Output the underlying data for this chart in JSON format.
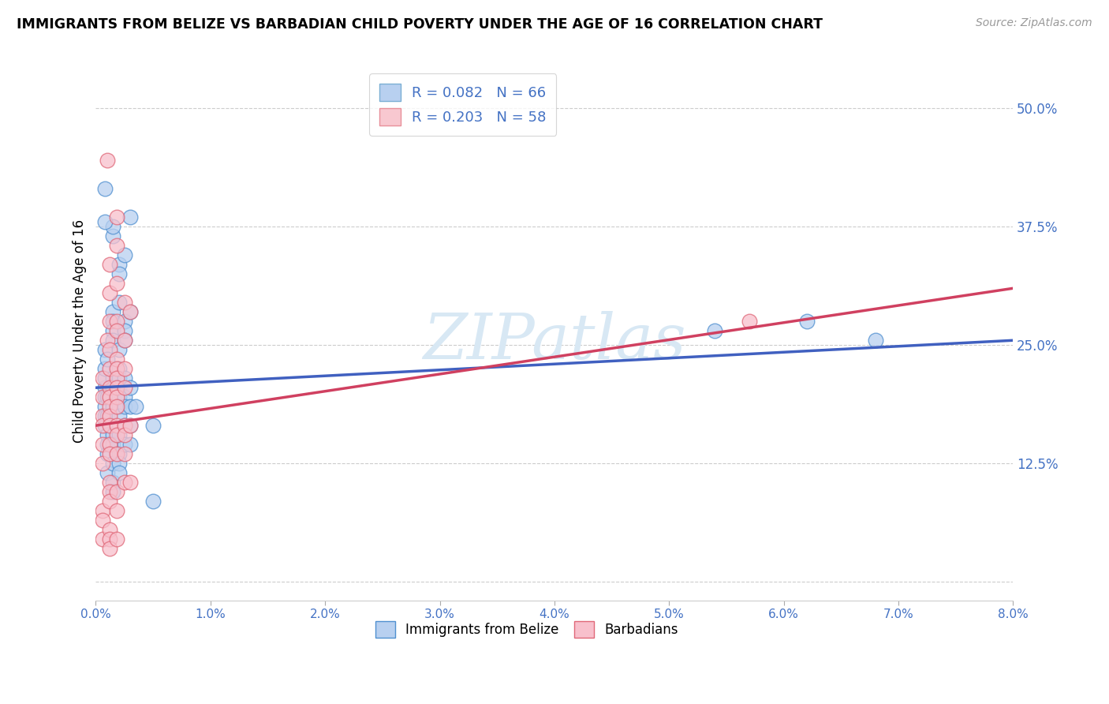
{
  "title": "IMMIGRANTS FROM BELIZE VS BARBADIAN CHILD POVERTY UNDER THE AGE OF 16 CORRELATION CHART",
  "source": "Source: ZipAtlas.com",
  "ylabel": "Child Poverty Under the Age of 16",
  "xmin": 0.0,
  "xmax": 0.08,
  "ymin": -0.02,
  "ymax": 0.55,
  "legend_entries": [
    {
      "label": "R = 0.082   N = 66",
      "facecolor": "#b8d0f0",
      "edgecolor": "#7bafd4"
    },
    {
      "label": "R = 0.203   N = 58",
      "facecolor": "#f8c8d0",
      "edgecolor": "#e8909a"
    }
  ],
  "legend_bottom": [
    "Immigrants from Belize",
    "Barbadians"
  ],
  "blue_face": "#b8d0f0",
  "blue_edge": "#5090d0",
  "pink_face": "#f8c0cc",
  "pink_edge": "#e06878",
  "blue_line_color": "#4060c0",
  "pink_line_color": "#d04060",
  "watermark": "ZIPatlas",
  "watermark_color": "#d8e8f4",
  "blue_scatter": [
    [
      0.0008,
      0.205
    ],
    [
      0.0008,
      0.195
    ],
    [
      0.0008,
      0.215
    ],
    [
      0.0008,
      0.185
    ],
    [
      0.0008,
      0.175
    ],
    [
      0.0008,
      0.165
    ],
    [
      0.0008,
      0.245
    ],
    [
      0.0008,
      0.225
    ],
    [
      0.001,
      0.235
    ],
    [
      0.001,
      0.195
    ],
    [
      0.001,
      0.175
    ],
    [
      0.001,
      0.155
    ],
    [
      0.001,
      0.145
    ],
    [
      0.001,
      0.135
    ],
    [
      0.001,
      0.115
    ],
    [
      0.0015,
      0.365
    ],
    [
      0.0015,
      0.375
    ],
    [
      0.0015,
      0.285
    ],
    [
      0.0015,
      0.275
    ],
    [
      0.0015,
      0.265
    ],
    [
      0.0015,
      0.255
    ],
    [
      0.0015,
      0.215
    ],
    [
      0.0015,
      0.205
    ],
    [
      0.0015,
      0.185
    ],
    [
      0.0015,
      0.155
    ],
    [
      0.0015,
      0.145
    ],
    [
      0.0015,
      0.125
    ],
    [
      0.0015,
      0.105
    ],
    [
      0.0015,
      0.095
    ],
    [
      0.002,
      0.335
    ],
    [
      0.002,
      0.325
    ],
    [
      0.002,
      0.295
    ],
    [
      0.002,
      0.245
    ],
    [
      0.002,
      0.225
    ],
    [
      0.002,
      0.215
    ],
    [
      0.002,
      0.205
    ],
    [
      0.002,
      0.195
    ],
    [
      0.002,
      0.185
    ],
    [
      0.002,
      0.175
    ],
    [
      0.002,
      0.155
    ],
    [
      0.002,
      0.135
    ],
    [
      0.002,
      0.125
    ],
    [
      0.002,
      0.115
    ],
    [
      0.0025,
      0.345
    ],
    [
      0.0025,
      0.275
    ],
    [
      0.0025,
      0.265
    ],
    [
      0.0025,
      0.255
    ],
    [
      0.0025,
      0.215
    ],
    [
      0.0025,
      0.195
    ],
    [
      0.0025,
      0.185
    ],
    [
      0.0025,
      0.165
    ],
    [
      0.0025,
      0.145
    ],
    [
      0.003,
      0.385
    ],
    [
      0.003,
      0.285
    ],
    [
      0.003,
      0.205
    ],
    [
      0.003,
      0.185
    ],
    [
      0.003,
      0.165
    ],
    [
      0.003,
      0.145
    ],
    [
      0.0035,
      0.185
    ],
    [
      0.005,
      0.165
    ],
    [
      0.005,
      0.085
    ],
    [
      0.054,
      0.265
    ],
    [
      0.062,
      0.275
    ],
    [
      0.068,
      0.255
    ],
    [
      0.0008,
      0.415
    ],
    [
      0.0008,
      0.38
    ]
  ],
  "pink_scatter": [
    [
      0.0006,
      0.215
    ],
    [
      0.0006,
      0.195
    ],
    [
      0.0006,
      0.175
    ],
    [
      0.0006,
      0.165
    ],
    [
      0.0006,
      0.145
    ],
    [
      0.0006,
      0.125
    ],
    [
      0.0006,
      0.075
    ],
    [
      0.0006,
      0.065
    ],
    [
      0.0006,
      0.045
    ],
    [
      0.001,
      0.255
    ],
    [
      0.001,
      0.445
    ],
    [
      0.0012,
      0.335
    ],
    [
      0.0012,
      0.305
    ],
    [
      0.0012,
      0.275
    ],
    [
      0.0012,
      0.245
    ],
    [
      0.0012,
      0.225
    ],
    [
      0.0012,
      0.205
    ],
    [
      0.0012,
      0.195
    ],
    [
      0.0012,
      0.185
    ],
    [
      0.0012,
      0.175
    ],
    [
      0.0012,
      0.165
    ],
    [
      0.0012,
      0.145
    ],
    [
      0.0012,
      0.135
    ],
    [
      0.0012,
      0.105
    ],
    [
      0.0012,
      0.095
    ],
    [
      0.0012,
      0.085
    ],
    [
      0.0012,
      0.055
    ],
    [
      0.0012,
      0.045
    ],
    [
      0.0012,
      0.035
    ],
    [
      0.0018,
      0.385
    ],
    [
      0.0018,
      0.355
    ],
    [
      0.0018,
      0.315
    ],
    [
      0.0018,
      0.275
    ],
    [
      0.0018,
      0.265
    ],
    [
      0.0018,
      0.235
    ],
    [
      0.0018,
      0.225
    ],
    [
      0.0018,
      0.215
    ],
    [
      0.0018,
      0.205
    ],
    [
      0.0018,
      0.195
    ],
    [
      0.0018,
      0.185
    ],
    [
      0.0018,
      0.165
    ],
    [
      0.0018,
      0.155
    ],
    [
      0.0018,
      0.135
    ],
    [
      0.0018,
      0.095
    ],
    [
      0.0018,
      0.075
    ],
    [
      0.0018,
      0.045
    ],
    [
      0.0025,
      0.295
    ],
    [
      0.0025,
      0.255
    ],
    [
      0.0025,
      0.225
    ],
    [
      0.0025,
      0.205
    ],
    [
      0.0025,
      0.165
    ],
    [
      0.0025,
      0.155
    ],
    [
      0.0025,
      0.135
    ],
    [
      0.0025,
      0.105
    ],
    [
      0.003,
      0.285
    ],
    [
      0.003,
      0.165
    ],
    [
      0.003,
      0.105
    ],
    [
      0.057,
      0.275
    ]
  ],
  "blue_trendline": [
    [
      0.0,
      0.205
    ],
    [
      0.08,
      0.255
    ]
  ],
  "pink_trendline": [
    [
      0.0,
      0.165
    ],
    [
      0.08,
      0.31
    ]
  ]
}
